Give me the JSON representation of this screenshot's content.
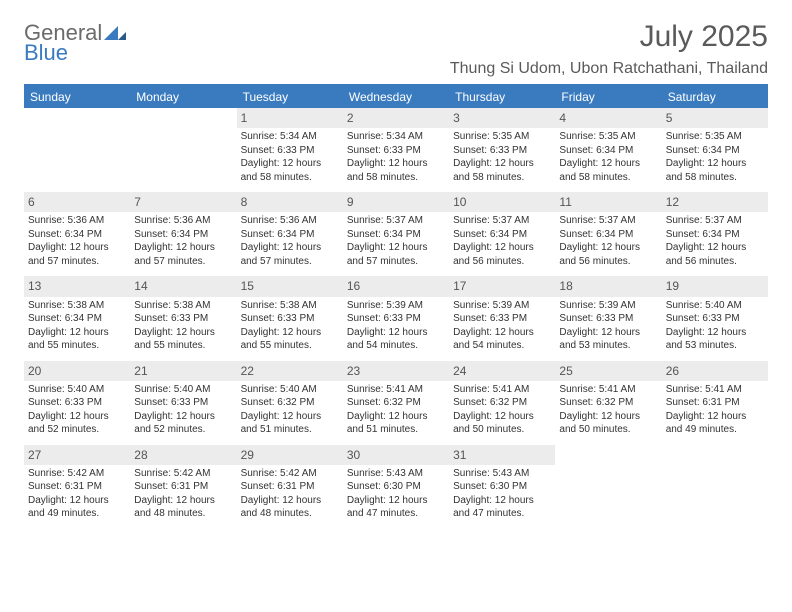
{
  "logo": {
    "word1": "General",
    "word2": "Blue"
  },
  "title": "July 2025",
  "subtitle": "Thung Si Udom, Ubon Ratchathani, Thailand",
  "colors": {
    "header_blue": "#3a7bbf",
    "daynum_bg": "#ececec",
    "text": "#333333",
    "title_text": "#5a5a5a"
  },
  "day_headers": [
    "Sunday",
    "Monday",
    "Tuesday",
    "Wednesday",
    "Thursday",
    "Friday",
    "Saturday"
  ],
  "weeks": [
    [
      null,
      null,
      {
        "d": "1",
        "sr": "Sunrise: 5:34 AM",
        "ss": "Sunset: 6:33 PM",
        "dl1": "Daylight: 12 hours",
        "dl2": "and 58 minutes."
      },
      {
        "d": "2",
        "sr": "Sunrise: 5:34 AM",
        "ss": "Sunset: 6:33 PM",
        "dl1": "Daylight: 12 hours",
        "dl2": "and 58 minutes."
      },
      {
        "d": "3",
        "sr": "Sunrise: 5:35 AM",
        "ss": "Sunset: 6:33 PM",
        "dl1": "Daylight: 12 hours",
        "dl2": "and 58 minutes."
      },
      {
        "d": "4",
        "sr": "Sunrise: 5:35 AM",
        "ss": "Sunset: 6:34 PM",
        "dl1": "Daylight: 12 hours",
        "dl2": "and 58 minutes."
      },
      {
        "d": "5",
        "sr": "Sunrise: 5:35 AM",
        "ss": "Sunset: 6:34 PM",
        "dl1": "Daylight: 12 hours",
        "dl2": "and 58 minutes."
      }
    ],
    [
      {
        "d": "6",
        "sr": "Sunrise: 5:36 AM",
        "ss": "Sunset: 6:34 PM",
        "dl1": "Daylight: 12 hours",
        "dl2": "and 57 minutes."
      },
      {
        "d": "7",
        "sr": "Sunrise: 5:36 AM",
        "ss": "Sunset: 6:34 PM",
        "dl1": "Daylight: 12 hours",
        "dl2": "and 57 minutes."
      },
      {
        "d": "8",
        "sr": "Sunrise: 5:36 AM",
        "ss": "Sunset: 6:34 PM",
        "dl1": "Daylight: 12 hours",
        "dl2": "and 57 minutes."
      },
      {
        "d": "9",
        "sr": "Sunrise: 5:37 AM",
        "ss": "Sunset: 6:34 PM",
        "dl1": "Daylight: 12 hours",
        "dl2": "and 57 minutes."
      },
      {
        "d": "10",
        "sr": "Sunrise: 5:37 AM",
        "ss": "Sunset: 6:34 PM",
        "dl1": "Daylight: 12 hours",
        "dl2": "and 56 minutes."
      },
      {
        "d": "11",
        "sr": "Sunrise: 5:37 AM",
        "ss": "Sunset: 6:34 PM",
        "dl1": "Daylight: 12 hours",
        "dl2": "and 56 minutes."
      },
      {
        "d": "12",
        "sr": "Sunrise: 5:37 AM",
        "ss": "Sunset: 6:34 PM",
        "dl1": "Daylight: 12 hours",
        "dl2": "and 56 minutes."
      }
    ],
    [
      {
        "d": "13",
        "sr": "Sunrise: 5:38 AM",
        "ss": "Sunset: 6:34 PM",
        "dl1": "Daylight: 12 hours",
        "dl2": "and 55 minutes."
      },
      {
        "d": "14",
        "sr": "Sunrise: 5:38 AM",
        "ss": "Sunset: 6:33 PM",
        "dl1": "Daylight: 12 hours",
        "dl2": "and 55 minutes."
      },
      {
        "d": "15",
        "sr": "Sunrise: 5:38 AM",
        "ss": "Sunset: 6:33 PM",
        "dl1": "Daylight: 12 hours",
        "dl2": "and 55 minutes."
      },
      {
        "d": "16",
        "sr": "Sunrise: 5:39 AM",
        "ss": "Sunset: 6:33 PM",
        "dl1": "Daylight: 12 hours",
        "dl2": "and 54 minutes."
      },
      {
        "d": "17",
        "sr": "Sunrise: 5:39 AM",
        "ss": "Sunset: 6:33 PM",
        "dl1": "Daylight: 12 hours",
        "dl2": "and 54 minutes."
      },
      {
        "d": "18",
        "sr": "Sunrise: 5:39 AM",
        "ss": "Sunset: 6:33 PM",
        "dl1": "Daylight: 12 hours",
        "dl2": "and 53 minutes."
      },
      {
        "d": "19",
        "sr": "Sunrise: 5:40 AM",
        "ss": "Sunset: 6:33 PM",
        "dl1": "Daylight: 12 hours",
        "dl2": "and 53 minutes."
      }
    ],
    [
      {
        "d": "20",
        "sr": "Sunrise: 5:40 AM",
        "ss": "Sunset: 6:33 PM",
        "dl1": "Daylight: 12 hours",
        "dl2": "and 52 minutes."
      },
      {
        "d": "21",
        "sr": "Sunrise: 5:40 AM",
        "ss": "Sunset: 6:33 PM",
        "dl1": "Daylight: 12 hours",
        "dl2": "and 52 minutes."
      },
      {
        "d": "22",
        "sr": "Sunrise: 5:40 AM",
        "ss": "Sunset: 6:32 PM",
        "dl1": "Daylight: 12 hours",
        "dl2": "and 51 minutes."
      },
      {
        "d": "23",
        "sr": "Sunrise: 5:41 AM",
        "ss": "Sunset: 6:32 PM",
        "dl1": "Daylight: 12 hours",
        "dl2": "and 51 minutes."
      },
      {
        "d": "24",
        "sr": "Sunrise: 5:41 AM",
        "ss": "Sunset: 6:32 PM",
        "dl1": "Daylight: 12 hours",
        "dl2": "and 50 minutes."
      },
      {
        "d": "25",
        "sr": "Sunrise: 5:41 AM",
        "ss": "Sunset: 6:32 PM",
        "dl1": "Daylight: 12 hours",
        "dl2": "and 50 minutes."
      },
      {
        "d": "26",
        "sr": "Sunrise: 5:41 AM",
        "ss": "Sunset: 6:31 PM",
        "dl1": "Daylight: 12 hours",
        "dl2": "and 49 minutes."
      }
    ],
    [
      {
        "d": "27",
        "sr": "Sunrise: 5:42 AM",
        "ss": "Sunset: 6:31 PM",
        "dl1": "Daylight: 12 hours",
        "dl2": "and 49 minutes."
      },
      {
        "d": "28",
        "sr": "Sunrise: 5:42 AM",
        "ss": "Sunset: 6:31 PM",
        "dl1": "Daylight: 12 hours",
        "dl2": "and 48 minutes."
      },
      {
        "d": "29",
        "sr": "Sunrise: 5:42 AM",
        "ss": "Sunset: 6:31 PM",
        "dl1": "Daylight: 12 hours",
        "dl2": "and 48 minutes."
      },
      {
        "d": "30",
        "sr": "Sunrise: 5:43 AM",
        "ss": "Sunset: 6:30 PM",
        "dl1": "Daylight: 12 hours",
        "dl2": "and 47 minutes."
      },
      {
        "d": "31",
        "sr": "Sunrise: 5:43 AM",
        "ss": "Sunset: 6:30 PM",
        "dl1": "Daylight: 12 hours",
        "dl2": "and 47 minutes."
      },
      null,
      null
    ]
  ]
}
